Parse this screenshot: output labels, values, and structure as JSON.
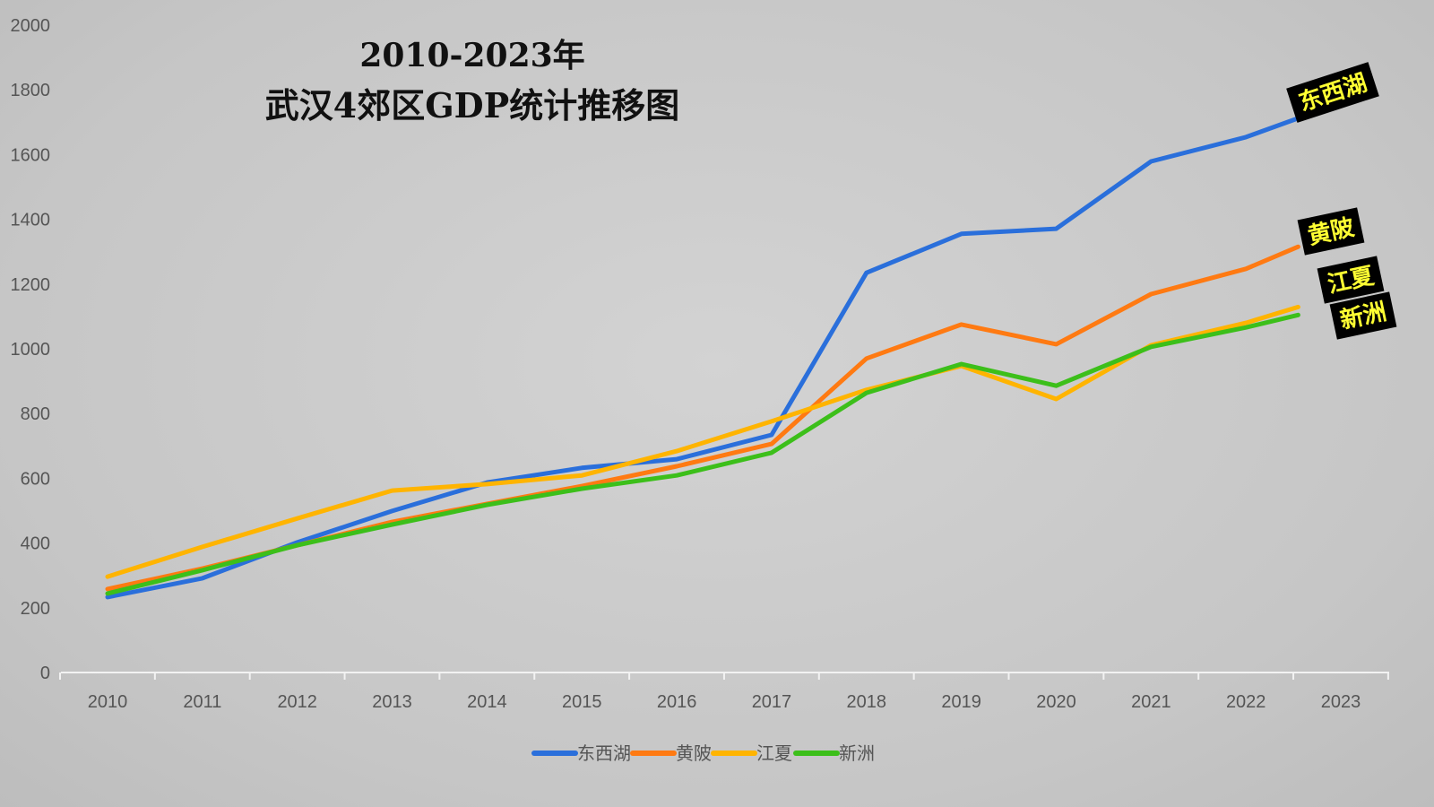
{
  "chart_data": {
    "type": "line",
    "title": "2010-2023年",
    "subtitle": "武汉4郊区GDP统计推移图",
    "xlabel": "",
    "ylabel": "",
    "x": [
      "2010",
      "2011",
      "2012",
      "2013",
      "2014",
      "2015",
      "2016",
      "2017",
      "2018",
      "2019",
      "2020",
      "2021",
      "2022",
      "2023"
    ],
    "ylim": [
      0,
      2000
    ],
    "yticks": [
      "0",
      "200",
      "400",
      "600",
      "800",
      "1000",
      "1200",
      "1400",
      "1600",
      "1800",
      "2000"
    ],
    "grid": false,
    "legend": "bottom",
    "series": [
      {
        "name": "东西湖",
        "color": "#2a6fdb",
        "values": [
          233,
          291,
          402,
          499,
          587,
          632,
          659,
          734,
          1235,
          1355,
          1371,
          1579,
          1654,
          1760
        ]
      },
      {
        "name": "黄陂",
        "color": "#ff7a12",
        "values": [
          258,
          321,
          393,
          465,
          521,
          576,
          637,
          706,
          970,
          1075,
          1014,
          1169,
          1247,
          1371
        ]
      },
      {
        "name": "江夏",
        "color": "#ffb400",
        "values": [
          296,
          388,
          476,
          562,
          582,
          609,
          684,
          776,
          873,
          947,
          845,
          1011,
          1080,
          1169
        ]
      },
      {
        "name": "新洲",
        "color": "#3cbf1a",
        "values": [
          244,
          316,
          393,
          457,
          518,
          568,
          609,
          679,
          864,
          953,
          886,
          1006,
          1066,
          1136
        ]
      }
    ]
  }
}
